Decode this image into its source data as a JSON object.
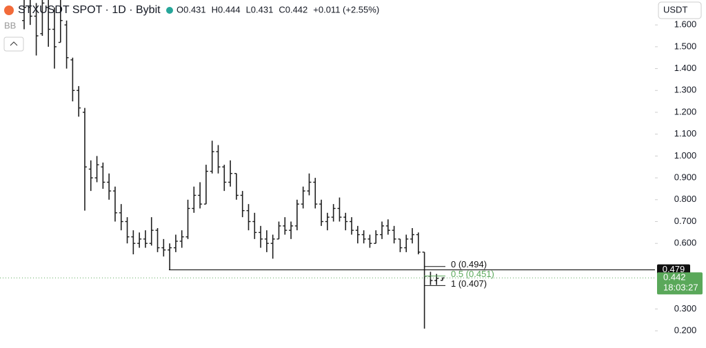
{
  "chart_data": {
    "type": "ohlc",
    "title": "STXUSDT SPOT · 1D · Bybit",
    "legend_values": [
      "O0.431",
      "H0.444",
      "L0.431",
      "C0.442",
      "+0.011 (+2.55%)"
    ],
    "indicator": "BB",
    "currency": "USDT",
    "color": "#1e1e1e",
    "open": [
      1.62,
      1.68,
      1.64,
      1.56,
      1.68,
      1.58,
      1.52,
      1.6,
      1.44,
      1.3,
      1.2,
      0.94,
      0.9,
      0.95,
      0.88,
      0.84,
      0.74,
      0.7,
      0.63,
      0.6,
      0.62,
      0.6,
      0.66,
      0.58,
      0.57,
      0.58,
      0.61,
      0.63,
      0.76,
      0.82,
      0.78,
      0.93,
      1.02,
      0.95,
      0.88,
      0.92,
      0.82,
      0.75,
      0.7,
      0.65,
      0.62,
      0.6,
      0.62,
      0.68,
      0.66,
      0.68,
      0.78,
      0.84,
      0.88,
      0.78,
      0.7,
      0.72,
      0.76,
      0.72,
      0.7,
      0.66,
      0.64,
      0.62,
      0.6,
      0.64,
      0.68,
      0.66,
      0.62,
      0.58,
      0.62,
      0.64,
      0.56,
      0.45,
      0.43,
      0.431
    ],
    "high": [
      1.72,
      1.72,
      1.7,
      1.73,
      1.72,
      1.68,
      1.72,
      1.62,
      1.45,
      1.32,
      1.22,
      0.98,
      1.0,
      0.97,
      0.92,
      0.86,
      0.78,
      0.72,
      0.66,
      0.65,
      0.66,
      0.72,
      0.67,
      0.62,
      0.6,
      0.64,
      0.66,
      0.8,
      0.86,
      0.88,
      0.96,
      1.07,
      1.05,
      0.96,
      0.98,
      0.92,
      0.84,
      0.78,
      0.74,
      0.68,
      0.66,
      0.64,
      0.7,
      0.72,
      0.7,
      0.8,
      0.86,
      0.92,
      0.9,
      0.8,
      0.74,
      0.78,
      0.81,
      0.74,
      0.72,
      0.68,
      0.66,
      0.64,
      0.66,
      0.7,
      0.71,
      0.68,
      0.62,
      0.64,
      0.67,
      0.65,
      0.56,
      0.47,
      0.46,
      0.444
    ],
    "low": [
      1.58,
      1.6,
      1.46,
      1.55,
      1.5,
      1.4,
      1.52,
      1.4,
      1.25,
      1.18,
      0.75,
      0.84,
      0.88,
      0.85,
      0.8,
      0.7,
      0.66,
      0.6,
      0.55,
      0.58,
      0.58,
      0.59,
      0.56,
      0.54,
      0.48,
      0.56,
      0.58,
      0.62,
      0.74,
      0.76,
      0.78,
      0.92,
      0.92,
      0.84,
      0.86,
      0.8,
      0.72,
      0.66,
      0.62,
      0.58,
      0.56,
      0.53,
      0.62,
      0.64,
      0.62,
      0.66,
      0.76,
      0.82,
      0.76,
      0.68,
      0.66,
      0.7,
      0.7,
      0.66,
      0.64,
      0.6,
      0.6,
      0.58,
      0.6,
      0.62,
      0.64,
      0.6,
      0.56,
      0.56,
      0.6,
      0.55,
      0.21,
      0.41,
      0.41,
      0.431
    ],
    "close": [
      1.68,
      1.64,
      1.55,
      1.7,
      1.58,
      1.5,
      1.62,
      1.45,
      1.3,
      1.22,
      0.95,
      0.9,
      0.96,
      0.88,
      0.84,
      0.74,
      0.7,
      0.63,
      0.6,
      0.62,
      0.6,
      0.66,
      0.58,
      0.57,
      0.58,
      0.61,
      0.63,
      0.76,
      0.82,
      0.78,
      0.93,
      1.02,
      0.95,
      0.88,
      0.92,
      0.82,
      0.75,
      0.7,
      0.65,
      0.62,
      0.6,
      0.62,
      0.68,
      0.66,
      0.68,
      0.78,
      0.84,
      0.88,
      0.78,
      0.7,
      0.72,
      0.76,
      0.72,
      0.7,
      0.66,
      0.64,
      0.62,
      0.6,
      0.64,
      0.68,
      0.66,
      0.62,
      0.58,
      0.62,
      0.64,
      0.56,
      0.45,
      0.43,
      0.44,
      0.442
    ],
    "ylim": [
      0.137,
      1.714
    ],
    "yticks": [
      {
        "value": 0.2,
        "label": "0.200"
      },
      {
        "value": 0.3,
        "label": "0.300"
      },
      {
        "value": 0.6,
        "label": "0.600"
      },
      {
        "value": 0.7,
        "label": "0.700"
      },
      {
        "value": 0.8,
        "label": "0.800"
      },
      {
        "value": 0.9,
        "label": "0.900"
      },
      {
        "value": 1.0,
        "label": "1.000"
      },
      {
        "value": 1.1,
        "label": "1.100"
      },
      {
        "value": 1.2,
        "label": "1.200"
      },
      {
        "value": 1.3,
        "label": "1.300"
      },
      {
        "value": 1.4,
        "label": "1.400"
      },
      {
        "value": 1.5,
        "label": "1.500"
      },
      {
        "value": 1.6,
        "label": "1.600"
      }
    ],
    "horizontal_line": {
      "value": 0.479,
      "label": "0.479"
    },
    "last_price": {
      "value": 0.442,
      "label": "0.442",
      "countdown": "18:03:27",
      "color": "#5aa85a"
    },
    "fib_levels": [
      {
        "value": 0.494,
        "label": "0 (0.494)"
      },
      {
        "value": 0.451,
        "label": "0.5 (0.451)"
      },
      {
        "value": 0.407,
        "label": "1 (0.407)"
      }
    ]
  }
}
